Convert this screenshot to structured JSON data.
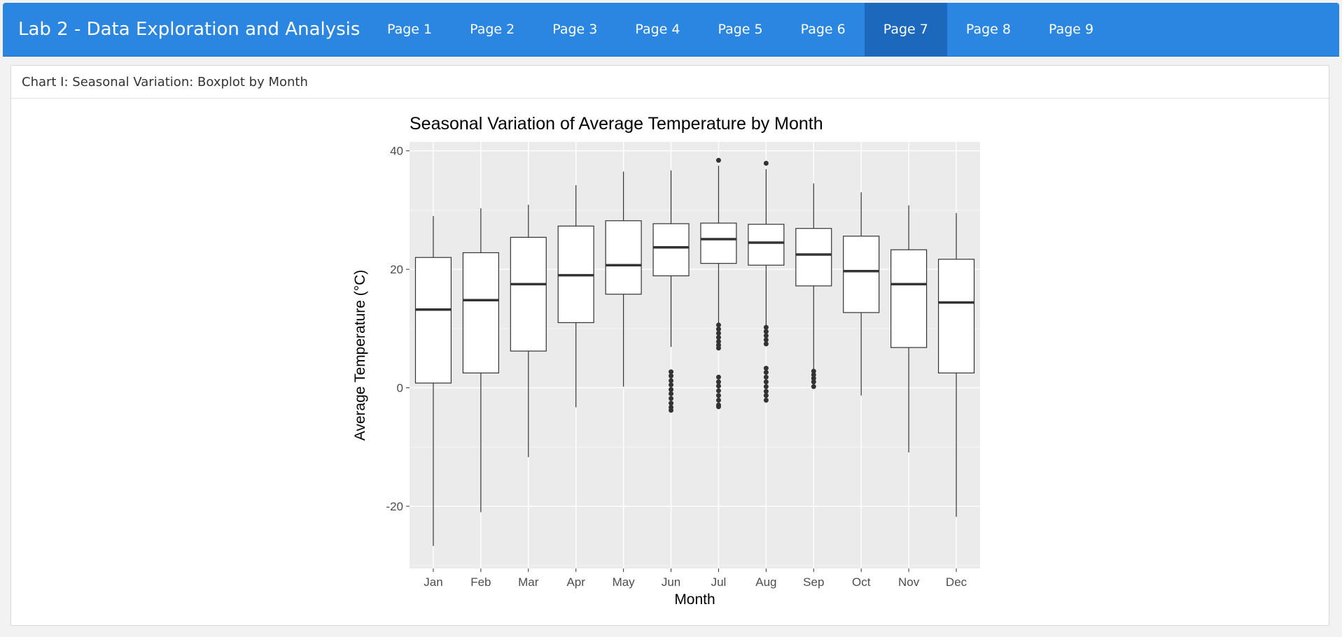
{
  "app": {
    "title": "Lab 2 - Data Exploration and Analysis",
    "nav": [
      {
        "label": "Page 1",
        "active": false
      },
      {
        "label": "Page 2",
        "active": false
      },
      {
        "label": "Page 3",
        "active": false
      },
      {
        "label": "Page 4",
        "active": false
      },
      {
        "label": "Page 5",
        "active": false
      },
      {
        "label": "Page 6",
        "active": false
      },
      {
        "label": "Page 7",
        "active": true
      },
      {
        "label": "Page 8",
        "active": false
      },
      {
        "label": "Page 9",
        "active": false
      }
    ]
  },
  "card": {
    "header": "Chart I: Seasonal Variation: Boxplot by Month"
  },
  "chart_data": {
    "type": "boxplot",
    "title": "Seasonal Variation of Average Temperature by Month",
    "xlabel": "Month",
    "ylabel": "Average Temperature (°C)",
    "ylim": [
      -30.5,
      41.5
    ],
    "yticks": [
      -20,
      0,
      20,
      40
    ],
    "grid": true,
    "categories": [
      "Jan",
      "Feb",
      "Mar",
      "Apr",
      "May",
      "Jun",
      "Jul",
      "Aug",
      "Sep",
      "Oct",
      "Nov",
      "Dec"
    ],
    "boxes": [
      {
        "min": -26.7,
        "q1": 0.8,
        "median": 13.2,
        "q3": 22.0,
        "max": 29.0,
        "outliers": []
      },
      {
        "min": -21.0,
        "q1": 2.5,
        "median": 14.8,
        "q3": 22.8,
        "max": 30.3,
        "outliers": []
      },
      {
        "min": -11.7,
        "q1": 6.2,
        "median": 17.5,
        "q3": 25.4,
        "max": 30.9,
        "outliers": []
      },
      {
        "min": -3.3,
        "q1": 11.0,
        "median": 19.0,
        "q3": 27.3,
        "max": 34.2,
        "outliers": []
      },
      {
        "min": 0.2,
        "q1": 15.8,
        "median": 20.7,
        "q3": 28.2,
        "max": 36.5,
        "outliers": []
      },
      {
        "min": 6.9,
        "q1": 18.9,
        "median": 23.7,
        "q3": 27.7,
        "max": 36.7,
        "outliers": [
          2.7,
          2.0,
          1.2,
          0.5,
          -0.3,
          -1.0,
          -1.8,
          -2.6,
          -3.3,
          -3.8
        ]
      },
      {
        "min": 10.9,
        "q1": 21.0,
        "median": 25.1,
        "q3": 27.8,
        "max": 37.5,
        "outliers": [
          38.4,
          10.6,
          9.9,
          9.2,
          8.5,
          7.8,
          7.2,
          6.7,
          1.8,
          1.0,
          0.3,
          -0.5,
          -1.3,
          -2.1,
          -2.9,
          -3.2
        ]
      },
      {
        "min": 10.5,
        "q1": 20.7,
        "median": 24.5,
        "q3": 27.6,
        "max": 36.9,
        "outliers": [
          37.9,
          10.2,
          9.5,
          8.8,
          8.1,
          7.4,
          3.3,
          2.6,
          1.8,
          1.0,
          0.2,
          -0.6,
          -1.3,
          -2.1
        ]
      },
      {
        "min": 3.0,
        "q1": 17.2,
        "median": 22.5,
        "q3": 26.9,
        "max": 34.5,
        "outliers": [
          2.8,
          2.2,
          1.6,
          1.0,
          0.2
        ]
      },
      {
        "min": -1.3,
        "q1": 12.7,
        "median": 19.7,
        "q3": 25.6,
        "max": 33.0,
        "outliers": []
      },
      {
        "min": -10.9,
        "q1": 6.8,
        "median": 17.5,
        "q3": 23.3,
        "max": 30.8,
        "outliers": []
      },
      {
        "min": -21.8,
        "q1": 2.5,
        "median": 14.4,
        "q3": 21.7,
        "max": 29.5,
        "outliers": []
      }
    ]
  }
}
